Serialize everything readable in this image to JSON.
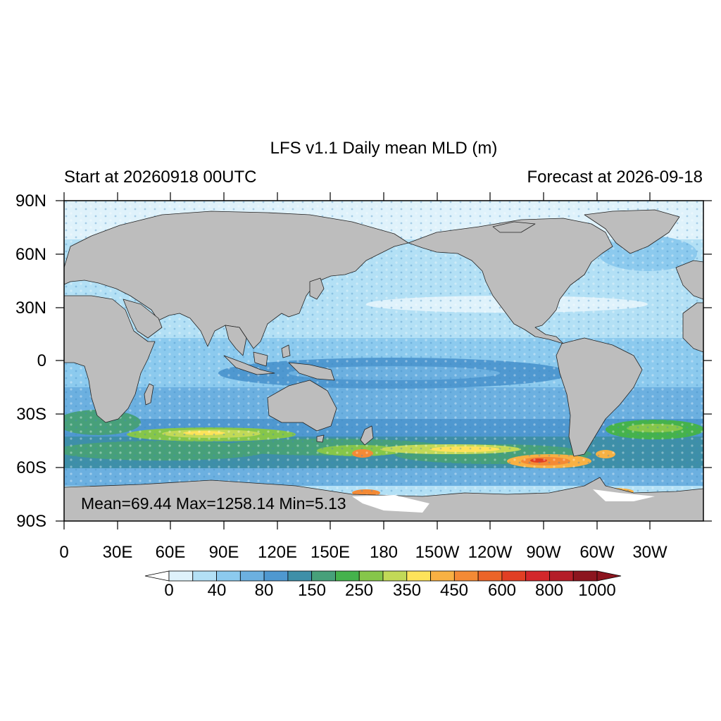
{
  "map": {
    "title": "LFS v1.1 Daily mean MLD (m)",
    "left_subtitle": "Start at 20260918 00UTC",
    "right_subtitle": "Forecast at 2026-09-18",
    "stats_text": "Mean=69.44  Max=1258.14  Min=5.13",
    "projection": "cylindrical equidistant, central longitude 180",
    "lat_ticks": [
      "90N",
      "60N",
      "30N",
      "0",
      "30S",
      "60S",
      "90S"
    ],
    "lon_ticks": [
      "0",
      "30E",
      "60E",
      "90E",
      "120E",
      "150E",
      "180",
      "150W",
      "120W",
      "90W",
      "60W",
      "30W"
    ],
    "land_color": "#bdbdbd"
  },
  "colorbar": {
    "labels": [
      "0",
      "40",
      "80",
      "150",
      "250",
      "350",
      "450",
      "600",
      "800",
      "1000"
    ],
    "colors": [
      "#dff2fb",
      "#b3e0f5",
      "#8ccaee",
      "#6cb0e0",
      "#4f98d0",
      "#3e8fa8",
      "#47a07a",
      "#45b24c",
      "#86c64a",
      "#c2d957",
      "#fde35a",
      "#f8b143",
      "#f48a35",
      "#ec6428",
      "#e13f24",
      "#d3272b",
      "#b41d28",
      "#8c151f"
    ],
    "under_color": "#ffffff",
    "over_color": "#8c151f"
  }
}
